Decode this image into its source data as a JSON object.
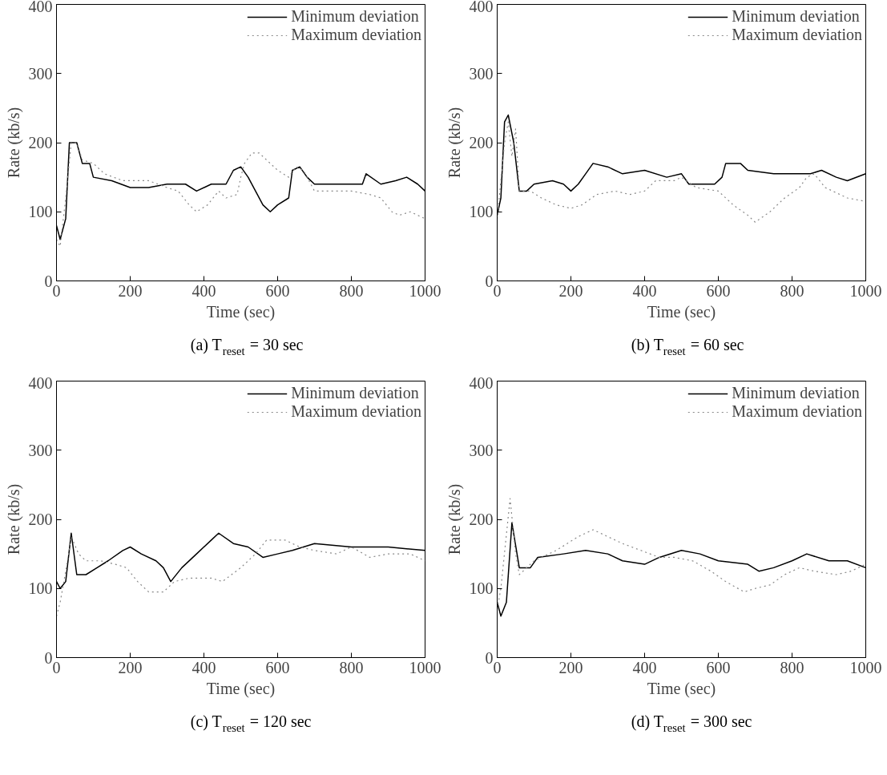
{
  "chart_data": [
    {
      "type": "line",
      "title": "(a) T$_{reset}$ = 30 sec",
      "xlabel": "Time (sec)",
      "ylabel": "Rate (kb/s)",
      "xlim": [
        0,
        1000
      ],
      "ylim": [
        0,
        400
      ],
      "xticks": [
        0,
        200,
        400,
        600,
        800,
        1000
      ],
      "yticks": [
        0,
        100,
        200,
        300,
        400
      ],
      "grid": false,
      "legend": "top right",
      "series": [
        {
          "name": "Minimum deviation",
          "color": "#000000",
          "line_style": "solid",
          "x": [
            0,
            10,
            25,
            35,
            55,
            70,
            90,
            100,
            150,
            200,
            250,
            300,
            350,
            380,
            420,
            460,
            480,
            500,
            520,
            540,
            560,
            580,
            600,
            630,
            640,
            660,
            680,
            700,
            800,
            830,
            840,
            880,
            920,
            950,
            980,
            1000
          ],
          "values": [
            80,
            60,
            90,
            200,
            200,
            170,
            170,
            150,
            145,
            135,
            135,
            140,
            140,
            130,
            140,
            140,
            160,
            165,
            150,
            130,
            110,
            100,
            110,
            120,
            160,
            165,
            150,
            140,
            140,
            140,
            155,
            140,
            145,
            150,
            140,
            130
          ]
        },
        {
          "name": "Maximum deviation",
          "color": "#888888",
          "line_style": "dotted",
          "x": [
            0,
            10,
            25,
            40,
            55,
            70,
            100,
            130,
            180,
            250,
            300,
            330,
            360,
            380,
            410,
            440,
            460,
            490,
            500,
            510,
            530,
            550,
            580,
            600,
            630,
            650,
            670,
            700,
            740,
            800,
            850,
            880,
            910,
            930,
            960,
            1000
          ],
          "values": [
            60,
            50,
            120,
            200,
            200,
            175,
            170,
            155,
            145,
            145,
            135,
            130,
            110,
            100,
            110,
            130,
            120,
            125,
            150,
            170,
            185,
            185,
            170,
            160,
            150,
            165,
            160,
            130,
            130,
            130,
            125,
            120,
            100,
            95,
            100,
            90
          ]
        }
      ]
    },
    {
      "type": "line",
      "title": "(b) T$_{reset}$ = 60 sec",
      "xlabel": "Time (sec)",
      "ylabel": "Rate (kb/s)",
      "xlim": [
        0,
        1000
      ],
      "ylim": [
        0,
        400
      ],
      "xticks": [
        0,
        200,
        400,
        600,
        800,
        1000
      ],
      "yticks": [
        0,
        100,
        200,
        300,
        400
      ],
      "grid": false,
      "legend": "top right",
      "series": [
        {
          "name": "Minimum deviation",
          "color": "#000000",
          "line_style": "solid",
          "x": [
            0,
            10,
            20,
            30,
            45,
            60,
            80,
            100,
            150,
            180,
            200,
            220,
            240,
            260,
            300,
            340,
            400,
            460,
            500,
            520,
            590,
            610,
            620,
            660,
            680,
            750,
            850,
            880,
            920,
            950,
            1000
          ],
          "values": [
            95,
            120,
            230,
            240,
            200,
            130,
            130,
            140,
            145,
            140,
            130,
            140,
            155,
            170,
            165,
            155,
            160,
            150,
            155,
            140,
            140,
            150,
            170,
            170,
            160,
            155,
            155,
            160,
            150,
            145,
            155
          ]
        },
        {
          "name": "Maximum deviation",
          "color": "#888888",
          "line_style": "dotted",
          "x": [
            0,
            20,
            30,
            40,
            50,
            60,
            90,
            120,
            160,
            200,
            230,
            270,
            320,
            360,
            400,
            430,
            480,
            500,
            540,
            600,
            640,
            680,
            700,
            740,
            780,
            820,
            840,
            860,
            890,
            950,
            1000
          ],
          "values": [
            90,
            200,
            230,
            180,
            220,
            130,
            130,
            120,
            110,
            105,
            110,
            125,
            130,
            125,
            130,
            145,
            145,
            150,
            135,
            130,
            110,
            95,
            85,
            100,
            120,
            135,
            150,
            155,
            135,
            120,
            115
          ]
        }
      ]
    },
    {
      "type": "line",
      "title": "(c) T$_{reset}$ = 120 sec",
      "xlabel": "Time (sec)",
      "ylabel": "Rate (kb/s)",
      "xlim": [
        0,
        1000
      ],
      "ylim": [
        0,
        400
      ],
      "xticks": [
        0,
        200,
        400,
        600,
        800,
        1000
      ],
      "yticks": [
        0,
        100,
        200,
        300,
        400
      ],
      "grid": false,
      "legend": "top right",
      "series": [
        {
          "name": "Minimum deviation",
          "color": "#000000",
          "line_style": "solid",
          "x": [
            0,
            10,
            25,
            40,
            55,
            80,
            110,
            140,
            180,
            200,
            230,
            270,
            290,
            310,
            340,
            380,
            420,
            440,
            480,
            520,
            560,
            600,
            640,
            700,
            800,
            900,
            1000
          ],
          "values": [
            110,
            100,
            110,
            180,
            120,
            120,
            130,
            140,
            155,
            160,
            150,
            140,
            130,
            110,
            130,
            150,
            170,
            180,
            165,
            160,
            145,
            150,
            155,
            165,
            160,
            160,
            155
          ]
        },
        {
          "name": "Maximum deviation",
          "color": "#888888",
          "line_style": "dotted",
          "x": [
            0,
            10,
            30,
            40,
            60,
            80,
            120,
            160,
            190,
            220,
            250,
            290,
            320,
            360,
            420,
            450,
            500,
            540,
            570,
            620,
            660,
            700,
            760,
            800,
            850,
            900,
            960,
            1000
          ],
          "values": [
            60,
            80,
            140,
            175,
            150,
            140,
            140,
            135,
            130,
            110,
            95,
            95,
            110,
            115,
            115,
            110,
            130,
            150,
            170,
            170,
            160,
            155,
            150,
            160,
            145,
            150,
            150,
            140
          ]
        }
      ]
    },
    {
      "type": "line",
      "title": "(d) T$_{reset}$ = 300 sec",
      "xlabel": "Time (sec)",
      "ylabel": "Rate (kb/s)",
      "xlim": [
        0,
        1000
      ],
      "ylim": [
        0,
        400
      ],
      "xticks": [
        0,
        200,
        400,
        600,
        800,
        1000
      ],
      "yticks": [
        0,
        100,
        200,
        300,
        400
      ],
      "grid": false,
      "legend": "top right",
      "series": [
        {
          "name": "Minimum deviation",
          "color": "#000000",
          "line_style": "solid",
          "x": [
            0,
            10,
            25,
            40,
            60,
            90,
            110,
            180,
            240,
            300,
            340,
            400,
            440,
            500,
            550,
            600,
            680,
            710,
            750,
            800,
            840,
            900,
            950,
            1000
          ],
          "values": [
            80,
            60,
            80,
            195,
            130,
            130,
            145,
            150,
            155,
            150,
            140,
            135,
            145,
            155,
            150,
            140,
            135,
            125,
            130,
            140,
            150,
            140,
            140,
            130
          ]
        },
        {
          "name": "Maximum deviation",
          "color": "#888888",
          "line_style": "dotted",
          "x": [
            0,
            10,
            35,
            50,
            60,
            100,
            160,
            220,
            260,
            300,
            340,
            390,
            440,
            480,
            530,
            580,
            620,
            670,
            700,
            740,
            780,
            820,
            860,
            920,
            960,
            1000
          ],
          "values": [
            70,
            100,
            230,
            150,
            120,
            140,
            155,
            175,
            185,
            175,
            165,
            155,
            145,
            145,
            140,
            125,
            110,
            95,
            100,
            105,
            120,
            130,
            125,
            120,
            125,
            135
          ]
        }
      ]
    }
  ]
}
